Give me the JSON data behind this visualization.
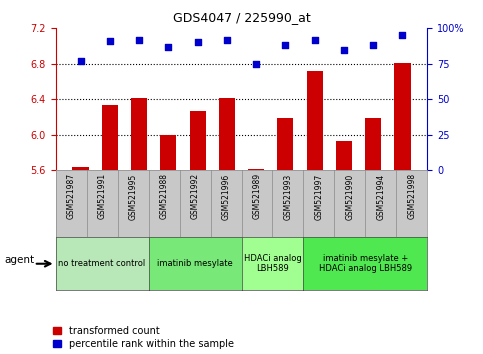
{
  "title": "GDS4047 / 225990_at",
  "samples": [
    "GSM521987",
    "GSM521991",
    "GSM521995",
    "GSM521988",
    "GSM521992",
    "GSM521996",
    "GSM521989",
    "GSM521993",
    "GSM521997",
    "GSM521990",
    "GSM521994",
    "GSM521998"
  ],
  "bar_values": [
    5.63,
    6.33,
    6.41,
    6.0,
    6.27,
    6.41,
    5.61,
    6.19,
    6.72,
    5.93,
    6.19,
    6.81
  ],
  "scatter_values": [
    77,
    91,
    92,
    87,
    90,
    92,
    75,
    88,
    92,
    85,
    88,
    95
  ],
  "bar_color": "#cc0000",
  "scatter_color": "#0000cc",
  "ylim_left": [
    5.6,
    7.2
  ],
  "ylim_right": [
    0,
    100
  ],
  "yticks_left": [
    5.6,
    6.0,
    6.4,
    6.8,
    7.2
  ],
  "yticks_right": [
    0,
    25,
    50,
    75,
    100
  ],
  "ytick_labels_right": [
    "0",
    "25",
    "50",
    "75",
    "100%"
  ],
  "hlines": [
    6.0,
    6.4,
    6.8
  ],
  "groups": [
    {
      "label": "no treatment control",
      "start": 0,
      "end": 3,
      "color": "#b8e8b8",
      "n_bars": 3
    },
    {
      "label": "imatinib mesylate",
      "start": 3,
      "end": 6,
      "color": "#78e878",
      "n_bars": 3
    },
    {
      "label": "HDACi analog\nLBH589",
      "start": 6,
      "end": 8,
      "color": "#a0ff90",
      "n_bars": 2
    },
    {
      "label": "imatinib mesylate +\nHDACi analog LBH589",
      "start": 8,
      "end": 12,
      "color": "#50e850",
      "n_bars": 4
    }
  ],
  "legend_bar_label": "transformed count",
  "legend_scatter_label": "percentile rank within the sample",
  "agent_label": "agent",
  "left_axis_color": "#cc0000",
  "right_axis_color": "#0000cc",
  "plot_bg": "#d8d8d8",
  "tick_area_bg": "#c8c8c8",
  "bar_width": 0.55
}
